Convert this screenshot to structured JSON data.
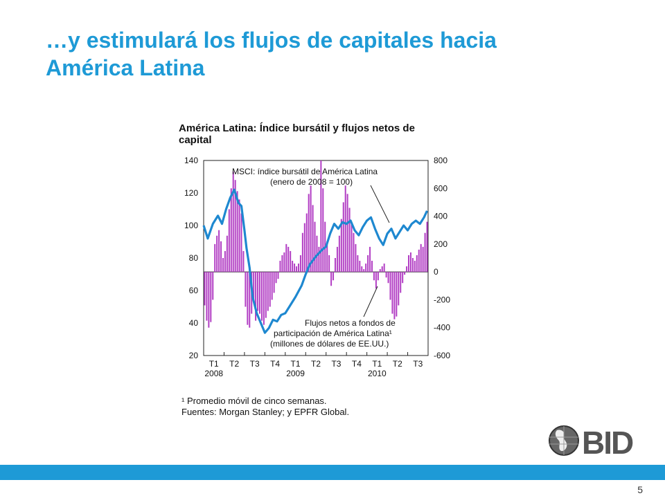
{
  "slide": {
    "title_line1": "…y estimulará los flujos de capitales hacia",
    "title_line2": "América Latina",
    "page_number": "5",
    "logo_text": "BID",
    "accent_color": "#1e9ad6"
  },
  "chart_data": {
    "type": "line",
    "title_line1": "América Latina: Índice bursátil y flujos netos de",
    "title_line2": "capital",
    "left_axis": {
      "ylim": [
        20,
        140
      ],
      "ticks": [
        140,
        120,
        100,
        80,
        60,
        40,
        20
      ]
    },
    "right_axis": {
      "ylim": [
        -600,
        800
      ],
      "ticks": [
        800,
        600,
        400,
        200,
        0,
        -200,
        -400,
        -600
      ]
    },
    "x_ticks": [
      "T1",
      "T2",
      "T3",
      "T4",
      "T1",
      "T2",
      "T3",
      "T4",
      "T1",
      "T2",
      "T3"
    ],
    "year_labels": [
      "2008",
      "2009",
      "2010"
    ],
    "annotations": {
      "msci_line1": "MSCI: índice bursátil de América Latina",
      "msci_line2": "(enero de 2008 = 100)",
      "flows_line1": "Flujos netos a fondos de",
      "flows_line2": "participación de América Latina¹",
      "flows_line3": "(millones de dólares de EE.UU.)"
    },
    "series": [
      {
        "axis": "left",
        "color": "#1e88d0",
        "x": [
          0,
          0.2,
          0.45,
          0.7,
          0.9,
          1.1,
          1.3,
          1.5,
          1.7,
          1.85,
          2.0,
          2.1,
          2.25,
          2.4,
          2.6,
          2.8,
          3.0,
          3.2,
          3.4,
          3.6,
          3.8,
          4.0,
          4.2,
          4.5,
          4.8,
          5.0,
          5.2,
          5.5,
          5.8,
          6.0,
          6.2,
          6.4,
          6.6,
          6.8,
          7.0,
          7.2,
          7.4,
          7.6,
          7.8,
          8.0,
          8.2,
          8.4,
          8.6,
          8.8,
          9.0,
          9.2,
          9.4,
          9.6,
          9.8,
          10.0,
          10.2,
          10.4,
          10.6,
          10.8,
          10.95
        ],
        "values": [
          100,
          92,
          101,
          106,
          101,
          110,
          117,
          122,
          114,
          112,
          97,
          86,
          74,
          56,
          46,
          40,
          34,
          37,
          42,
          41,
          45,
          46,
          50,
          56,
          63,
          70,
          76,
          81,
          85,
          87,
          95,
          101,
          98,
          102,
          101,
          103,
          97,
          94,
          99,
          103,
          105,
          98,
          92,
          88,
          95,
          98,
          92,
          96,
          100,
          97,
          101,
          103,
          101,
          105,
          109
        ]
      },
      {
        "axis": "right",
        "type": "bar",
        "color": "#b23ec4",
        "x": [
          0.05,
          0.15,
          0.25,
          0.35,
          0.45,
          0.55,
          0.65,
          0.75,
          0.85,
          0.95,
          1.05,
          1.15,
          1.25,
          1.35,
          1.45,
          1.55,
          1.65,
          1.75,
          1.85,
          1.95,
          2.05,
          2.15,
          2.25,
          2.35,
          2.45,
          2.55,
          2.65,
          2.75,
          2.85,
          2.95,
          3.05,
          3.15,
          3.25,
          3.35,
          3.45,
          3.55,
          3.65,
          3.75,
          3.85,
          3.95,
          4.05,
          4.15,
          4.25,
          4.35,
          4.45,
          4.55,
          4.65,
          4.75,
          4.85,
          4.95,
          5.05,
          5.15,
          5.25,
          5.35,
          5.45,
          5.55,
          5.65,
          5.75,
          5.85,
          5.95,
          6.05,
          6.15,
          6.25,
          6.35,
          6.45,
          6.55,
          6.65,
          6.75,
          6.85,
          6.95,
          7.05,
          7.15,
          7.25,
          7.35,
          7.45,
          7.55,
          7.65,
          7.75,
          7.85,
          7.95,
          8.05,
          8.15,
          8.25,
          8.35,
          8.45,
          8.55,
          8.65,
          8.75,
          8.85,
          8.95,
          9.05,
          9.15,
          9.25,
          9.35,
          9.45,
          9.55,
          9.65,
          9.75,
          9.85,
          9.95,
          10.05,
          10.15,
          10.25,
          10.35,
          10.45,
          10.55,
          10.65,
          10.75,
          10.85,
          10.95
        ],
        "values": [
          -240,
          -350,
          -400,
          -360,
          -200,
          200,
          260,
          300,
          220,
          100,
          150,
          260,
          450,
          600,
          720,
          660,
          580,
          520,
          420,
          150,
          -250,
          -380,
          -400,
          -300,
          -200,
          -350,
          -280,
          -300,
          -350,
          -380,
          -330,
          -280,
          -250,
          -200,
          -150,
          -80,
          -50,
          80,
          120,
          140,
          200,
          180,
          150,
          80,
          60,
          40,
          60,
          120,
          280,
          350,
          420,
          560,
          620,
          480,
          360,
          260,
          180,
          860,
          600,
          360,
          220,
          120,
          -100,
          -60,
          100,
          180,
          260,
          380,
          500,
          620,
          560,
          460,
          360,
          280,
          200,
          120,
          80,
          40,
          20,
          60,
          120,
          180,
          80,
          -60,
          -120,
          -60,
          20,
          40,
          60,
          -40,
          -80,
          -200,
          -300,
          -340,
          -320,
          -240,
          -150,
          -80,
          -20,
          40,
          120,
          140,
          100,
          80,
          120,
          160,
          200,
          180,
          280,
          360
        ]
      }
    ]
  },
  "footnotes": {
    "note": "¹ Promedio móvil de cinco semanas.",
    "sources": "Fuentes: Morgan Stanley; y EPFR Global."
  }
}
